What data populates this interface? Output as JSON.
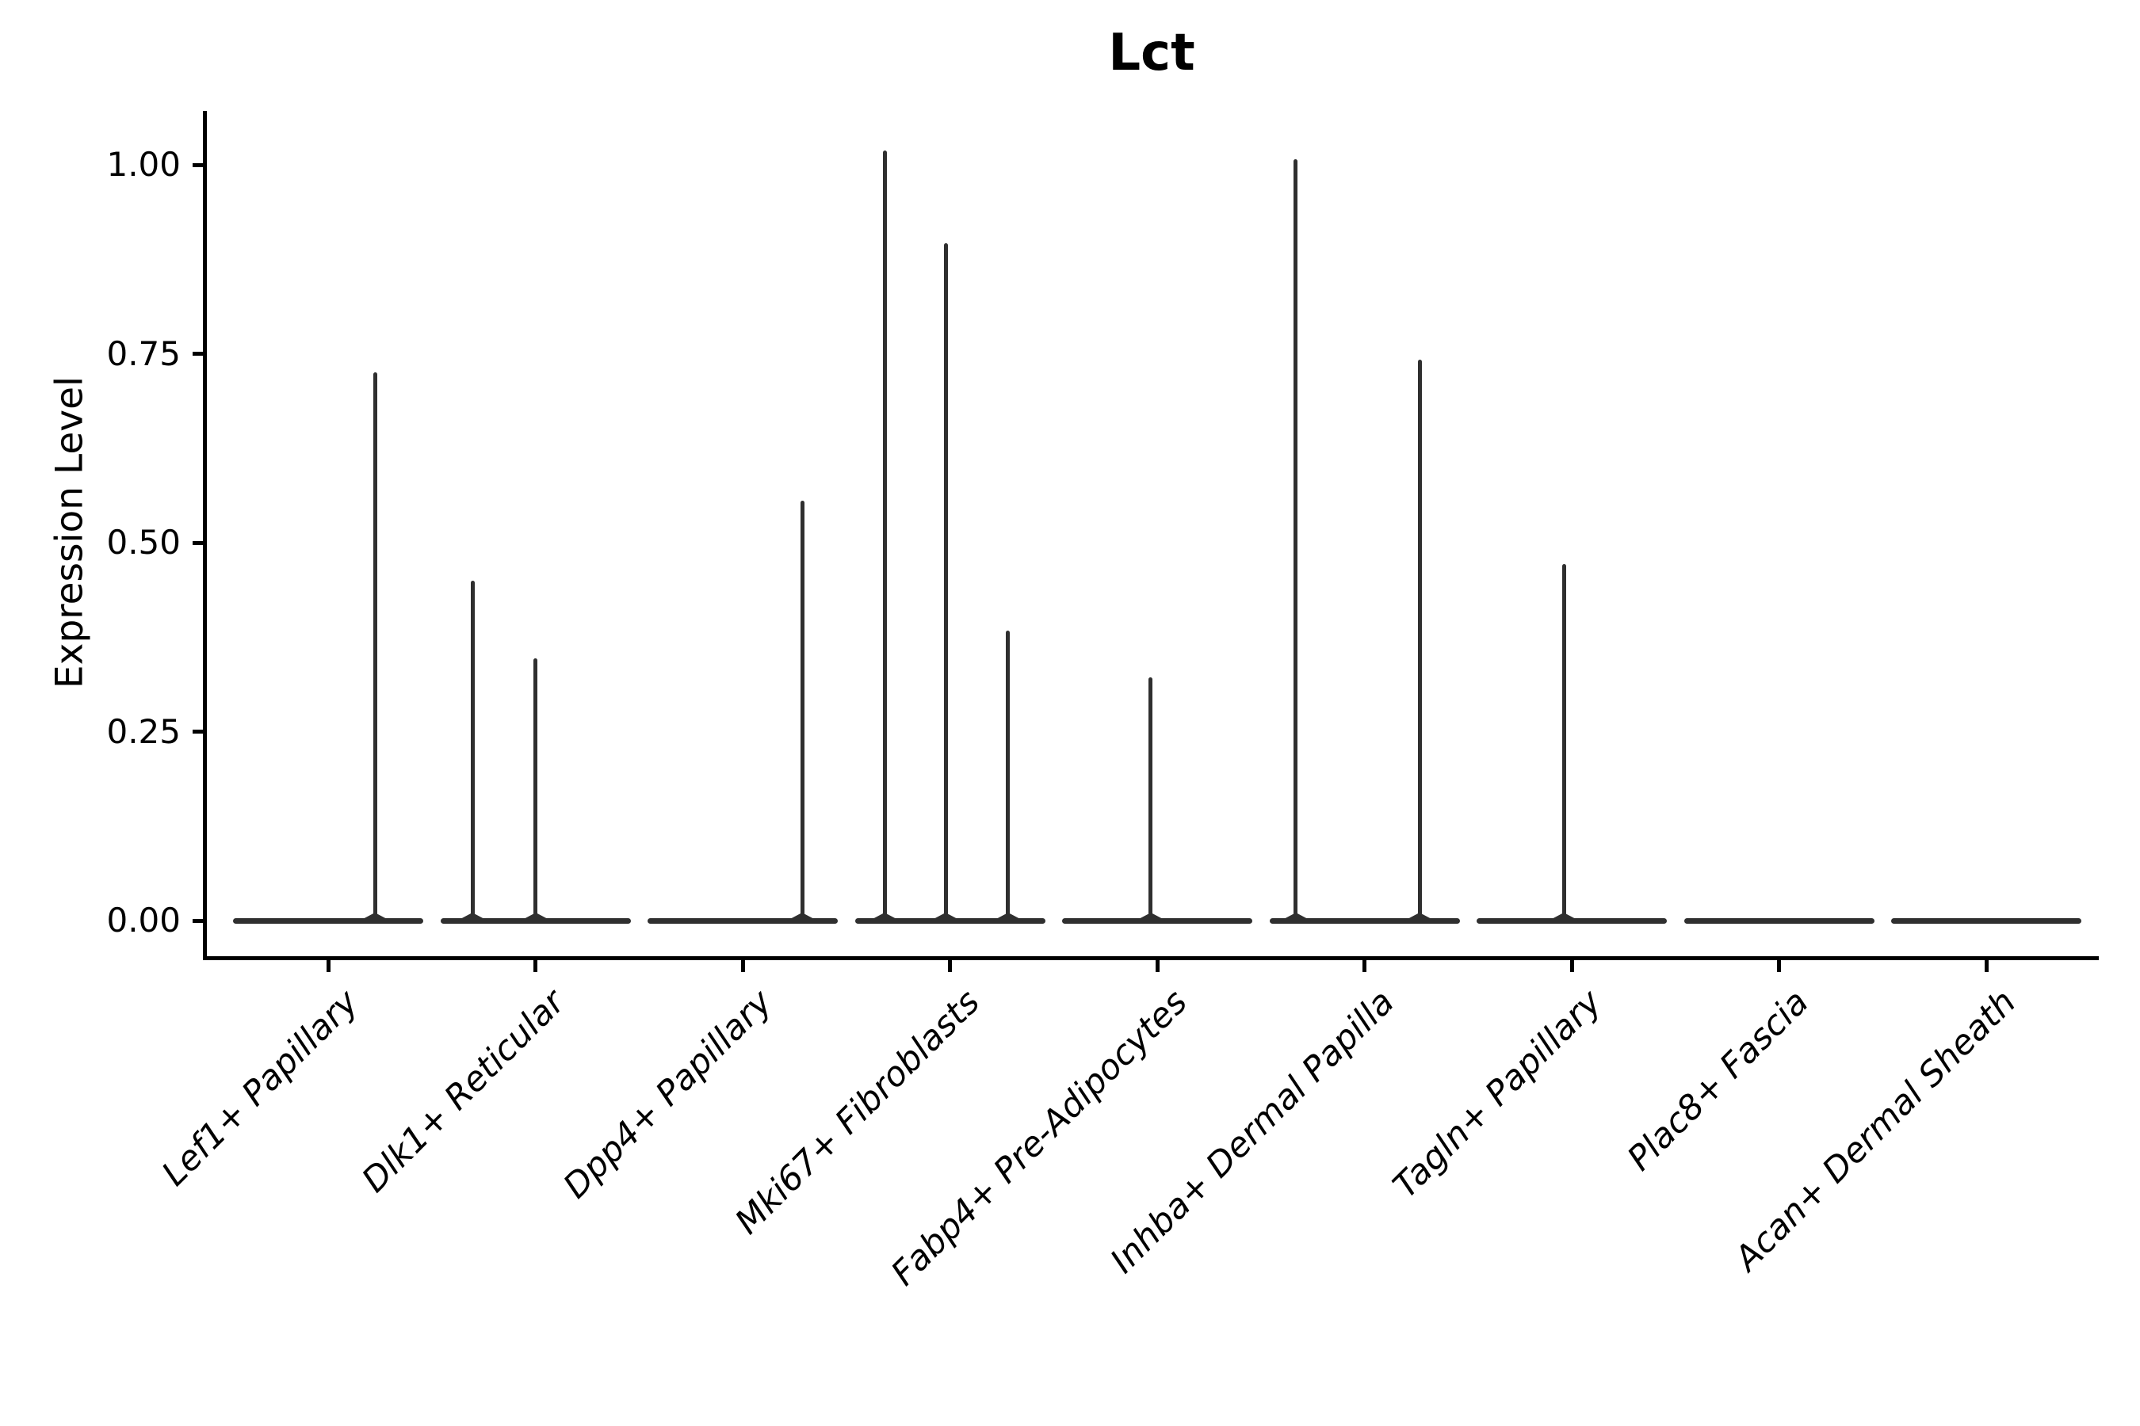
{
  "chart_data": {
    "type": "violin",
    "title": "Lct",
    "xlabel": "",
    "ylabel": "Expression Level",
    "ylim": [
      -0.049,
      1.071
    ],
    "ytick_labels": [
      "0.00",
      "0.25",
      "0.50",
      "0.75",
      "1.00"
    ],
    "ytick_values": [
      0,
      0.25,
      0.5,
      0.75,
      1.0
    ],
    "x_tick_rotation": 45,
    "grid": false,
    "legend": "none",
    "violin_width": 0.92,
    "categories": [
      "Lef1+ Papillary",
      "Dlk1+ Reticular",
      "Dpp4+ Papillary",
      "Mki67+ Fibroblasts",
      "Fabp4+ Pre-Adipocytes",
      "Inhba+ Dermal Papilla",
      "Tagln+ Papillary",
      "Plac8+ Fascia",
      "Acan+ Dermal Sheath"
    ],
    "series": [
      {
        "name": "Lef1+ Papillary",
        "baseline_value": 0,
        "spikes": [
          {
            "offset": 0.226,
            "value": 0.725
          }
        ]
      },
      {
        "name": "Dlk1+ Reticular",
        "baseline_value": 0,
        "spikes": [
          {
            "offset": -0.304,
            "value": 0.45
          },
          {
            "offset": 0.0,
            "value": 0.347
          }
        ]
      },
      {
        "name": "Dpp4+ Papillary",
        "baseline_value": 0,
        "spikes": [
          {
            "offset": 0.287,
            "value": 0.556
          }
        ]
      },
      {
        "name": "Mki67+ Fibroblasts",
        "baseline_value": 0,
        "spikes": [
          {
            "offset": -0.315,
            "value": 1.019
          },
          {
            "offset": -0.021,
            "value": 0.896
          },
          {
            "offset": 0.281,
            "value": 0.384
          }
        ]
      },
      {
        "name": "Fabp4+ Pre-Adipocytes",
        "baseline_value": 0,
        "spikes": [
          {
            "offset": -0.031,
            "value": 0.322
          }
        ]
      },
      {
        "name": "Inhba+ Dermal Papilla",
        "baseline_value": 0,
        "spikes": [
          {
            "offset": -0.331,
            "value": 1.007
          },
          {
            "offset": 0.266,
            "value": 0.742
          }
        ]
      },
      {
        "name": "Tagln+ Papillary",
        "baseline_value": 0,
        "spikes": [
          {
            "offset": -0.038,
            "value": 0.472
          }
        ]
      },
      {
        "name": "Plac8+ Fascia",
        "baseline_value": 0,
        "spikes": []
      },
      {
        "name": "Acan+ Dermal Sheath",
        "baseline_value": 0,
        "spikes": []
      }
    ]
  },
  "colors": {
    "background": "#ffffff",
    "violin_line": "#2f2f2f",
    "axis": "#000000",
    "text": "#000000"
  }
}
